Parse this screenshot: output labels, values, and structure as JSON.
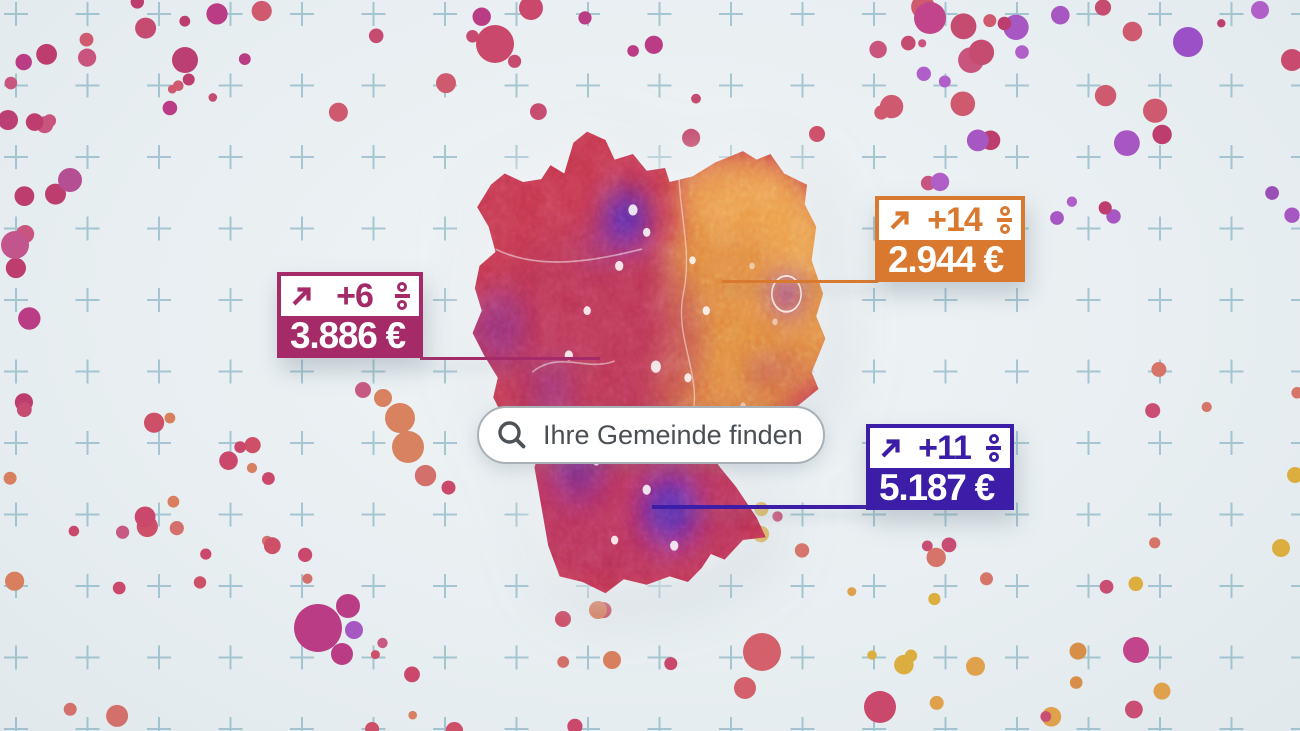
{
  "search": {
    "placeholder": "Ihre Gemeinde finden"
  },
  "callouts": [
    {
      "id": "west",
      "trend": "+6",
      "unit": "%",
      "price": "3.886 €",
      "color": "#a52a68"
    },
    {
      "id": "east",
      "trend": "+14",
      "unit": "%",
      "price": "2.944 €",
      "color": "#d9782f"
    },
    {
      "id": "south",
      "trend": "+11",
      "unit": "%",
      "price": "5.187 €",
      "color": "#3b1da8"
    }
  ],
  "icons": {
    "search": "magnifier",
    "trend": "arrow-up-right",
    "percent": "stacked-percent"
  },
  "colors": {
    "background": "#e4ebef",
    "grid_cross": "#5f9bb1",
    "map": {
      "base": "#c13349",
      "east": "#e18a3c",
      "east_light": "#eda04b",
      "mid_magenta": "#b02f56",
      "south_magenta": "#a92d60",
      "purple": "#4b28b4",
      "violet": "#7c2d92",
      "berlin": "#8d2090"
    },
    "dot_palettes": {
      "pink": [
        "#c64b70",
        "#bd3d6e",
        "#c9557f",
        "#b93c85",
        "#cf5a6f"
      ],
      "violet": [
        "#a757c2",
        "#b05fc9",
        "#9a4fb5"
      ],
      "warm": [
        "#cd4f68",
        "#d4706b",
        "#d87f5f",
        "#c75a83",
        "#c9486b"
      ],
      "orange": [
        "#d78e49",
        "#dcae3f",
        "#d7746a",
        "#ca4d74",
        "#e0a14c"
      ]
    }
  }
}
